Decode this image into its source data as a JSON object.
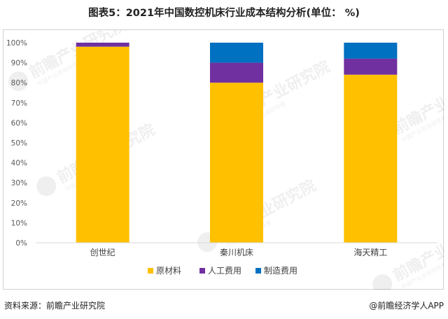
{
  "title": "图表5：2021年中国数控机床行业成本结构分析(单位： %)",
  "footer": {
    "source": "资料来源：前瞻产业研究院",
    "credit": "@前瞻经济学人APP"
  },
  "watermark": {
    "text": "前瞻产业研究院",
    "subtext": "中国产业咨询领导者"
  },
  "colors": {
    "原材料": "#ffc000",
    "人工费用": "#7030a0",
    "制造费用": "#0070c0",
    "axis": "#d9d9d9",
    "text": "#595959"
  },
  "chart_data": {
    "type": "bar",
    "stacked": true,
    "percent": true,
    "categories": [
      "创世纪",
      "秦川机床",
      "海天精工"
    ],
    "series": [
      {
        "name": "原材料",
        "values": [
          98,
          80,
          84
        ]
      },
      {
        "name": "人工费用",
        "values": [
          2,
          10,
          8
        ]
      },
      {
        "name": "制造费用",
        "values": [
          0,
          10,
          8
        ]
      }
    ],
    "ylim": [
      0,
      100
    ],
    "yticks": [
      "0%",
      "10%",
      "20%",
      "30%",
      "40%",
      "50%",
      "60%",
      "70%",
      "80%",
      "90%",
      "100%"
    ],
    "grid": false,
    "legend": "bottom"
  }
}
